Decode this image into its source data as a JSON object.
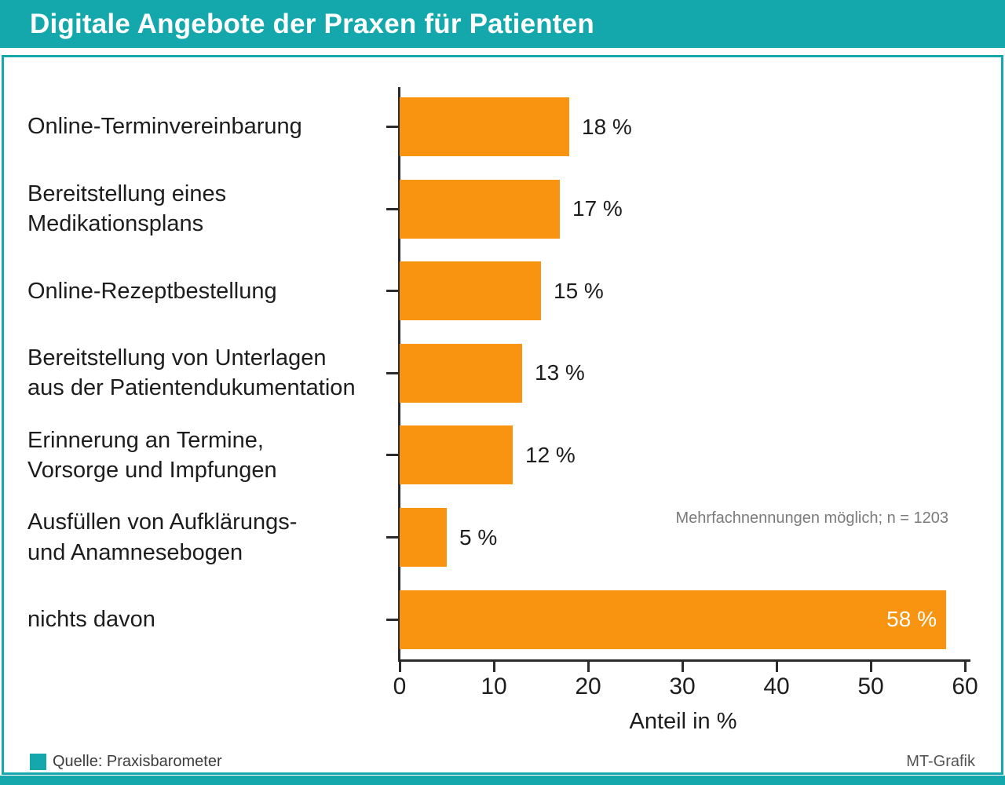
{
  "header": {
    "title": "Digitale Angebote der Praxen für Patienten"
  },
  "chart_data": {
    "type": "bar",
    "orientation": "horizontal",
    "categories": [
      "Online-Terminvereinbarung",
      "Bereitstellung eines\nMedikationsplans",
      "Online-Rezeptbestellung",
      "Bereitstellung von Unterlagen\naus der Patientendukumentation",
      "Erinnerung an Termine,\nVorsorge und Impfungen",
      "Ausfüllen von Aufklärungs-\nund Anamnesebogen",
      "nichts davon"
    ],
    "values": [
      18,
      17,
      15,
      13,
      12,
      5,
      58
    ],
    "value_labels": [
      "18 %",
      "17 %",
      "15 %",
      "13 %",
      "12 %",
      "5 %",
      "58 %"
    ],
    "xlabel": "Anteil in %",
    "xlim": [
      0,
      60
    ],
    "xticks": [
      0,
      10,
      20,
      30,
      40,
      50,
      60
    ],
    "note": "Mehrfachnennungen möglich; n = 1203",
    "grid": false,
    "legend": false
  },
  "footer": {
    "source": "Quelle: Praxisbarometer",
    "credit": "MT-Grafik"
  },
  "colors": {
    "accent_teal": "#14A8AC",
    "bar_orange": "#F8940F",
    "axis": "#2B2B2B",
    "note_gray": "#7B7B7B",
    "title_text": "#FFFFFF",
    "label_text": "#1D1D1D"
  }
}
